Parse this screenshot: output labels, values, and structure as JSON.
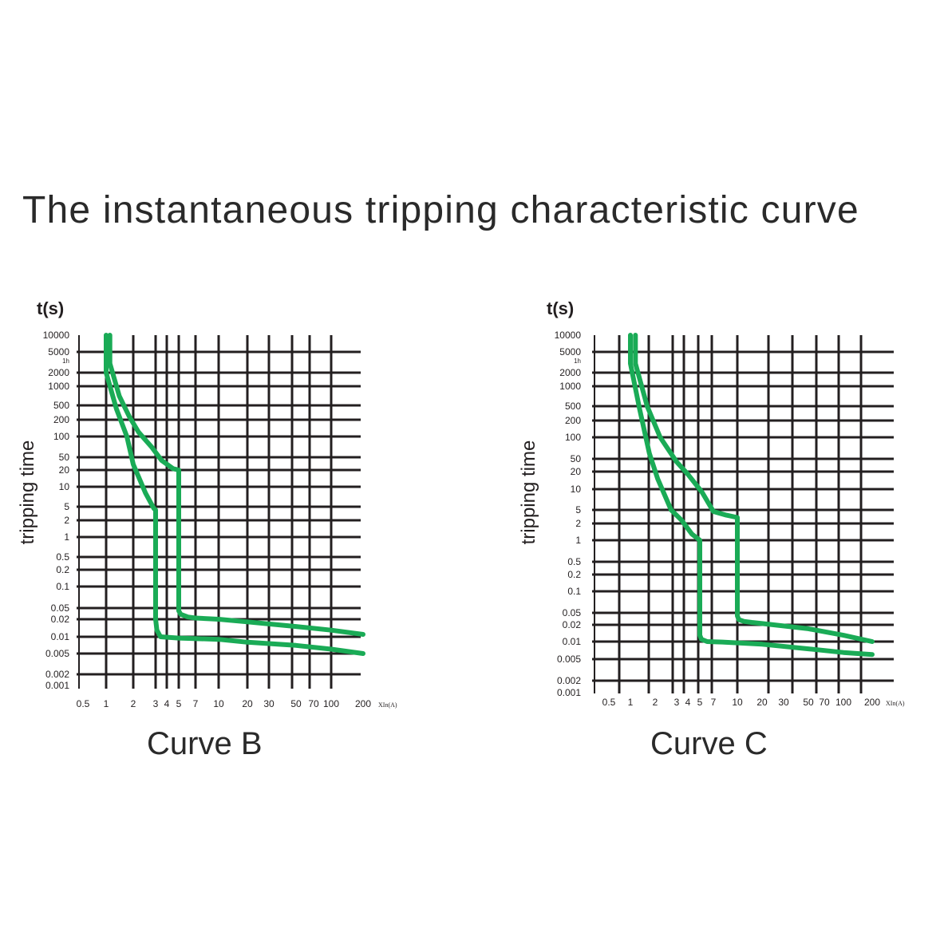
{
  "title": "The instantaneous tripping characteristic curve",
  "captions": [
    "Curve B",
    "Curve C"
  ],
  "curve_color": "#1aab56",
  "grid_color": "#231f20",
  "hour_mark": "1h",
  "chart_data": [
    {
      "type": "line",
      "title": "Curve B",
      "ylabel": "tripping time",
      "yunit": "t(s)",
      "xlabel": "XIn(A)",
      "x_ticks": [
        "0.5",
        "1",
        "2",
        "3",
        "4",
        "5",
        "7",
        "10",
        "20",
        "30",
        "50",
        "70",
        "100",
        "200"
      ],
      "y_ticks": [
        "10000",
        "5000",
        "2000",
        "1000",
        "500",
        "200",
        "100",
        "50",
        "20",
        "10",
        "5",
        "2",
        "1",
        "0.5",
        "0.2",
        "0.1",
        "0.05",
        "0.02",
        "0.01",
        "0.005",
        "0.002",
        "0.001"
      ],
      "scale": "log",
      "grid": true,
      "series": [
        {
          "x": [
            1,
            1,
            1.3,
            1.7,
            2,
            2.5,
            2.9,
            3,
            3,
            3.1,
            3.4,
            5,
            10,
            20,
            50,
            100,
            200
          ],
          "y": [
            10000,
            2000,
            400,
            100,
            30,
            8,
            4.5,
            4,
            0.02,
            0.013,
            0.01,
            0.0095,
            0.009,
            0.008,
            0.007,
            0.006,
            0.005
          ]
        },
        {
          "x": [
            1.1,
            1.1,
            1.4,
            1.8,
            2.2,
            2.8,
            3.5,
            4.5,
            5,
            5,
            5.2,
            6,
            7,
            10,
            20,
            50,
            100,
            200
          ],
          "y": [
            10000,
            3000,
            700,
            250,
            120,
            70,
            40,
            22,
            20,
            0.04,
            0.03,
            0.024,
            0.022,
            0.02,
            0.018,
            0.015,
            0.013,
            0.011
          ]
        }
      ]
    },
    {
      "type": "line",
      "title": "Curve C",
      "ylabel": "tripping time",
      "yunit": "t(s)",
      "xlabel": "XIn(A)",
      "x_ticks": [
        "0.5",
        "1",
        "2",
        "3",
        "4",
        "5",
        "7",
        "10",
        "20",
        "30",
        "50",
        "70",
        "100",
        "200"
      ],
      "y_ticks": [
        "10000",
        "5000",
        "2000",
        "1000",
        "500",
        "200",
        "100",
        "50",
        "20",
        "10",
        "5",
        "2",
        "1",
        "0.5",
        "0.2",
        "0.1",
        "0.05",
        "0.02",
        "0.01",
        "0.005",
        "0.002",
        "0.001"
      ],
      "scale": "log",
      "grid": true,
      "series": [
        {
          "x": [
            1,
            1,
            1.3,
            1.7,
            2.1,
            2.7,
            3.4,
            4.3,
            5,
            5,
            5.2,
            6,
            8,
            10,
            20,
            50,
            100,
            200
          ],
          "y": [
            10000,
            3000,
            400,
            60,
            15,
            5,
            2.5,
            1.3,
            1,
            0.013,
            0.011,
            0.01,
            0.0098,
            0.0095,
            0.009,
            0.0075,
            0.0065,
            0.006
          ]
        },
        {
          "x": [
            1.15,
            1.15,
            1.6,
            2.2,
            3,
            4,
            5.3,
            7,
            8.5,
            10,
            10,
            10.4,
            12,
            15,
            20,
            50,
            100,
            200
          ],
          "y": [
            10000,
            3000,
            500,
            100,
            40,
            18,
            9,
            4.5,
            3.5,
            3,
            0.04,
            0.03,
            0.026,
            0.024,
            0.022,
            0.017,
            0.013,
            0.01
          ]
        }
      ]
    }
  ]
}
